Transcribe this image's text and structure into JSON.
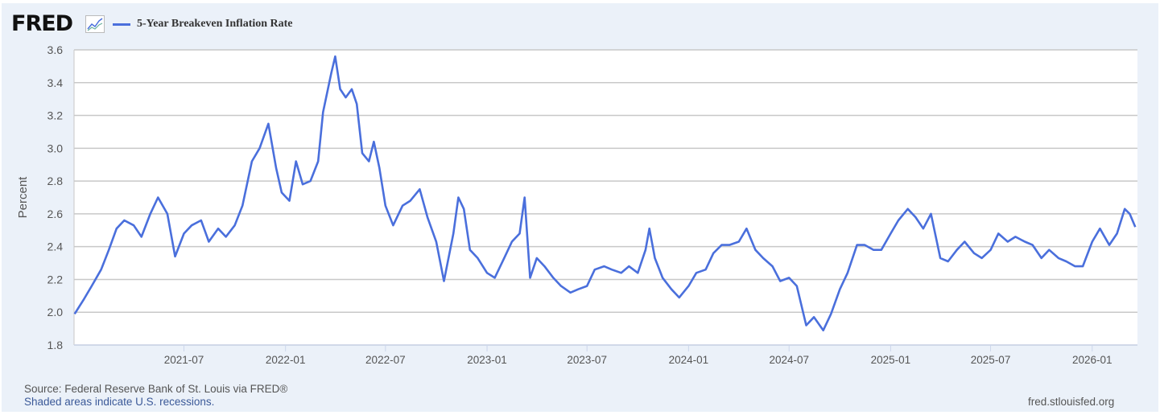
{
  "brand": {
    "logo_text": "FRED",
    "icon": "line-chart-icon"
  },
  "legend": {
    "label": "5-Year Breakeven Inflation Rate",
    "color": "#4a6fdc"
  },
  "footer": {
    "source": "Source: Federal Reserve Bank of St. Louis via FRED®",
    "recessions_note": "Shaded areas indicate U.S. recessions.",
    "site": "fred.stlouisfed.org"
  },
  "chart_data": {
    "type": "line",
    "title": "5-Year Breakeven Inflation Rate",
    "ylabel": "Percent",
    "xlabel": "",
    "ylim": [
      1.8,
      3.6
    ],
    "yticks": [
      "1.8",
      "2.0",
      "2.2",
      "2.4",
      "2.6",
      "2.8",
      "3.0",
      "3.2",
      "3.4",
      "3.6"
    ],
    "xlim": [
      "2020-12-14",
      "2026-03-24"
    ],
    "xticks": [
      "2021-07",
      "2022-01",
      "2022-07",
      "2023-01",
      "2023-07",
      "2024-01",
      "2024-07",
      "2025-01",
      "2025-07",
      "2026-01"
    ],
    "grid": true,
    "legend_position": "top-left",
    "series": [
      {
        "name": "5-Year Breakeven Inflation Rate",
        "color": "#4a6fdc",
        "points": [
          [
            "2020-12-15",
            1.99
          ],
          [
            "2021-01-01",
            2.08
          ],
          [
            "2021-01-15",
            2.16
          ],
          [
            "2021-02-01",
            2.26
          ],
          [
            "2021-02-15",
            2.38
          ],
          [
            "2021-03-01",
            2.51
          ],
          [
            "2021-03-15",
            2.56
          ],
          [
            "2021-04-01",
            2.53
          ],
          [
            "2021-04-15",
            2.46
          ],
          [
            "2021-05-01",
            2.6
          ],
          [
            "2021-05-15",
            2.7
          ],
          [
            "2021-06-01",
            2.6
          ],
          [
            "2021-06-15",
            2.34
          ],
          [
            "2021-07-01",
            2.48
          ],
          [
            "2021-07-15",
            2.53
          ],
          [
            "2021-08-01",
            2.56
          ],
          [
            "2021-08-15",
            2.43
          ],
          [
            "2021-09-01",
            2.51
          ],
          [
            "2021-09-15",
            2.46
          ],
          [
            "2021-10-01",
            2.53
          ],
          [
            "2021-10-15",
            2.65
          ],
          [
            "2021-11-01",
            2.92
          ],
          [
            "2021-11-15",
            3.0
          ],
          [
            "2021-12-01",
            3.15
          ],
          [
            "2021-12-15",
            2.88
          ],
          [
            "2021-12-25",
            2.73
          ],
          [
            "2022-01-08",
            2.68
          ],
          [
            "2022-01-20",
            2.92
          ],
          [
            "2022-02-01",
            2.78
          ],
          [
            "2022-02-15",
            2.8
          ],
          [
            "2022-03-01",
            2.92
          ],
          [
            "2022-03-10",
            3.22
          ],
          [
            "2022-03-25",
            3.46
          ],
          [
            "2022-04-01",
            3.56
          ],
          [
            "2022-04-10",
            3.36
          ],
          [
            "2022-04-20",
            3.31
          ],
          [
            "2022-05-01",
            3.36
          ],
          [
            "2022-05-10",
            3.27
          ],
          [
            "2022-05-20",
            2.97
          ],
          [
            "2022-06-01",
            2.92
          ],
          [
            "2022-06-10",
            3.04
          ],
          [
            "2022-06-20",
            2.88
          ],
          [
            "2022-07-01",
            2.65
          ],
          [
            "2022-07-15",
            2.53
          ],
          [
            "2022-08-01",
            2.65
          ],
          [
            "2022-08-15",
            2.68
          ],
          [
            "2022-09-01",
            2.75
          ],
          [
            "2022-09-15",
            2.58
          ],
          [
            "2022-10-01",
            2.43
          ],
          [
            "2022-10-15",
            2.19
          ],
          [
            "2022-11-01",
            2.48
          ],
          [
            "2022-11-10",
            2.7
          ],
          [
            "2022-11-20",
            2.63
          ],
          [
            "2022-12-01",
            2.38
          ],
          [
            "2022-12-15",
            2.33
          ],
          [
            "2023-01-01",
            2.24
          ],
          [
            "2023-01-15",
            2.21
          ],
          [
            "2023-02-01",
            2.33
          ],
          [
            "2023-02-15",
            2.43
          ],
          [
            "2023-03-01",
            2.48
          ],
          [
            "2023-03-10",
            2.7
          ],
          [
            "2023-03-20",
            2.21
          ],
          [
            "2023-04-01",
            2.33
          ],
          [
            "2023-04-15",
            2.28
          ],
          [
            "2023-05-01",
            2.21
          ],
          [
            "2023-05-15",
            2.16
          ],
          [
            "2023-06-01",
            2.12
          ],
          [
            "2023-06-15",
            2.14
          ],
          [
            "2023-07-01",
            2.16
          ],
          [
            "2023-07-15",
            2.26
          ],
          [
            "2023-08-01",
            2.28
          ],
          [
            "2023-08-15",
            2.26
          ],
          [
            "2023-09-01",
            2.24
          ],
          [
            "2023-09-15",
            2.28
          ],
          [
            "2023-10-01",
            2.24
          ],
          [
            "2023-10-15",
            2.38
          ],
          [
            "2023-10-22",
            2.51
          ],
          [
            "2023-11-01",
            2.33
          ],
          [
            "2023-11-15",
            2.21
          ],
          [
            "2023-12-01",
            2.14
          ],
          [
            "2023-12-15",
            2.09
          ],
          [
            "2024-01-01",
            2.16
          ],
          [
            "2024-01-15",
            2.24
          ],
          [
            "2024-02-01",
            2.26
          ],
          [
            "2024-02-15",
            2.36
          ],
          [
            "2024-03-01",
            2.41
          ],
          [
            "2024-03-15",
            2.41
          ],
          [
            "2024-04-01",
            2.43
          ],
          [
            "2024-04-15",
            2.51
          ],
          [
            "2024-05-01",
            2.38
          ],
          [
            "2024-05-15",
            2.33
          ],
          [
            "2024-06-01",
            2.28
          ],
          [
            "2024-06-15",
            2.19
          ],
          [
            "2024-07-01",
            2.21
          ],
          [
            "2024-07-15",
            2.16
          ],
          [
            "2024-08-01",
            1.92
          ],
          [
            "2024-08-15",
            1.97
          ],
          [
            "2024-09-01",
            1.89
          ],
          [
            "2024-09-15",
            1.99
          ],
          [
            "2024-10-01",
            2.14
          ],
          [
            "2024-10-15",
            2.24
          ],
          [
            "2024-11-01",
            2.41
          ],
          [
            "2024-11-15",
            2.41
          ],
          [
            "2024-12-01",
            2.38
          ],
          [
            "2024-12-15",
            2.38
          ],
          [
            "2025-01-01",
            2.48
          ],
          [
            "2025-01-15",
            2.56
          ],
          [
            "2025-02-01",
            2.63
          ],
          [
            "2025-02-15",
            2.58
          ],
          [
            "2025-03-01",
            2.51
          ],
          [
            "2025-03-15",
            2.6
          ],
          [
            "2025-04-01",
            2.33
          ],
          [
            "2025-04-15",
            2.31
          ],
          [
            "2025-05-01",
            2.38
          ],
          [
            "2025-05-15",
            2.43
          ],
          [
            "2025-06-01",
            2.36
          ],
          [
            "2025-06-15",
            2.33
          ],
          [
            "2025-07-01",
            2.38
          ],
          [
            "2025-07-15",
            2.48
          ],
          [
            "2025-08-01",
            2.43
          ],
          [
            "2025-08-15",
            2.46
          ],
          [
            "2025-09-01",
            2.43
          ],
          [
            "2025-09-15",
            2.41
          ],
          [
            "2025-10-01",
            2.33
          ],
          [
            "2025-10-15",
            2.38
          ],
          [
            "2025-11-01",
            2.33
          ],
          [
            "2025-11-15",
            2.31
          ],
          [
            "2025-12-01",
            2.28
          ],
          [
            "2025-12-15",
            2.28
          ],
          [
            "2026-01-01",
            2.43
          ],
          [
            "2026-01-15",
            2.51
          ],
          [
            "2026-02-01",
            2.41
          ],
          [
            "2026-02-15",
            2.48
          ],
          [
            "2026-03-01",
            2.63
          ],
          [
            "2026-03-10",
            2.6
          ],
          [
            "2026-03-20",
            2.52
          ]
        ]
      }
    ]
  }
}
